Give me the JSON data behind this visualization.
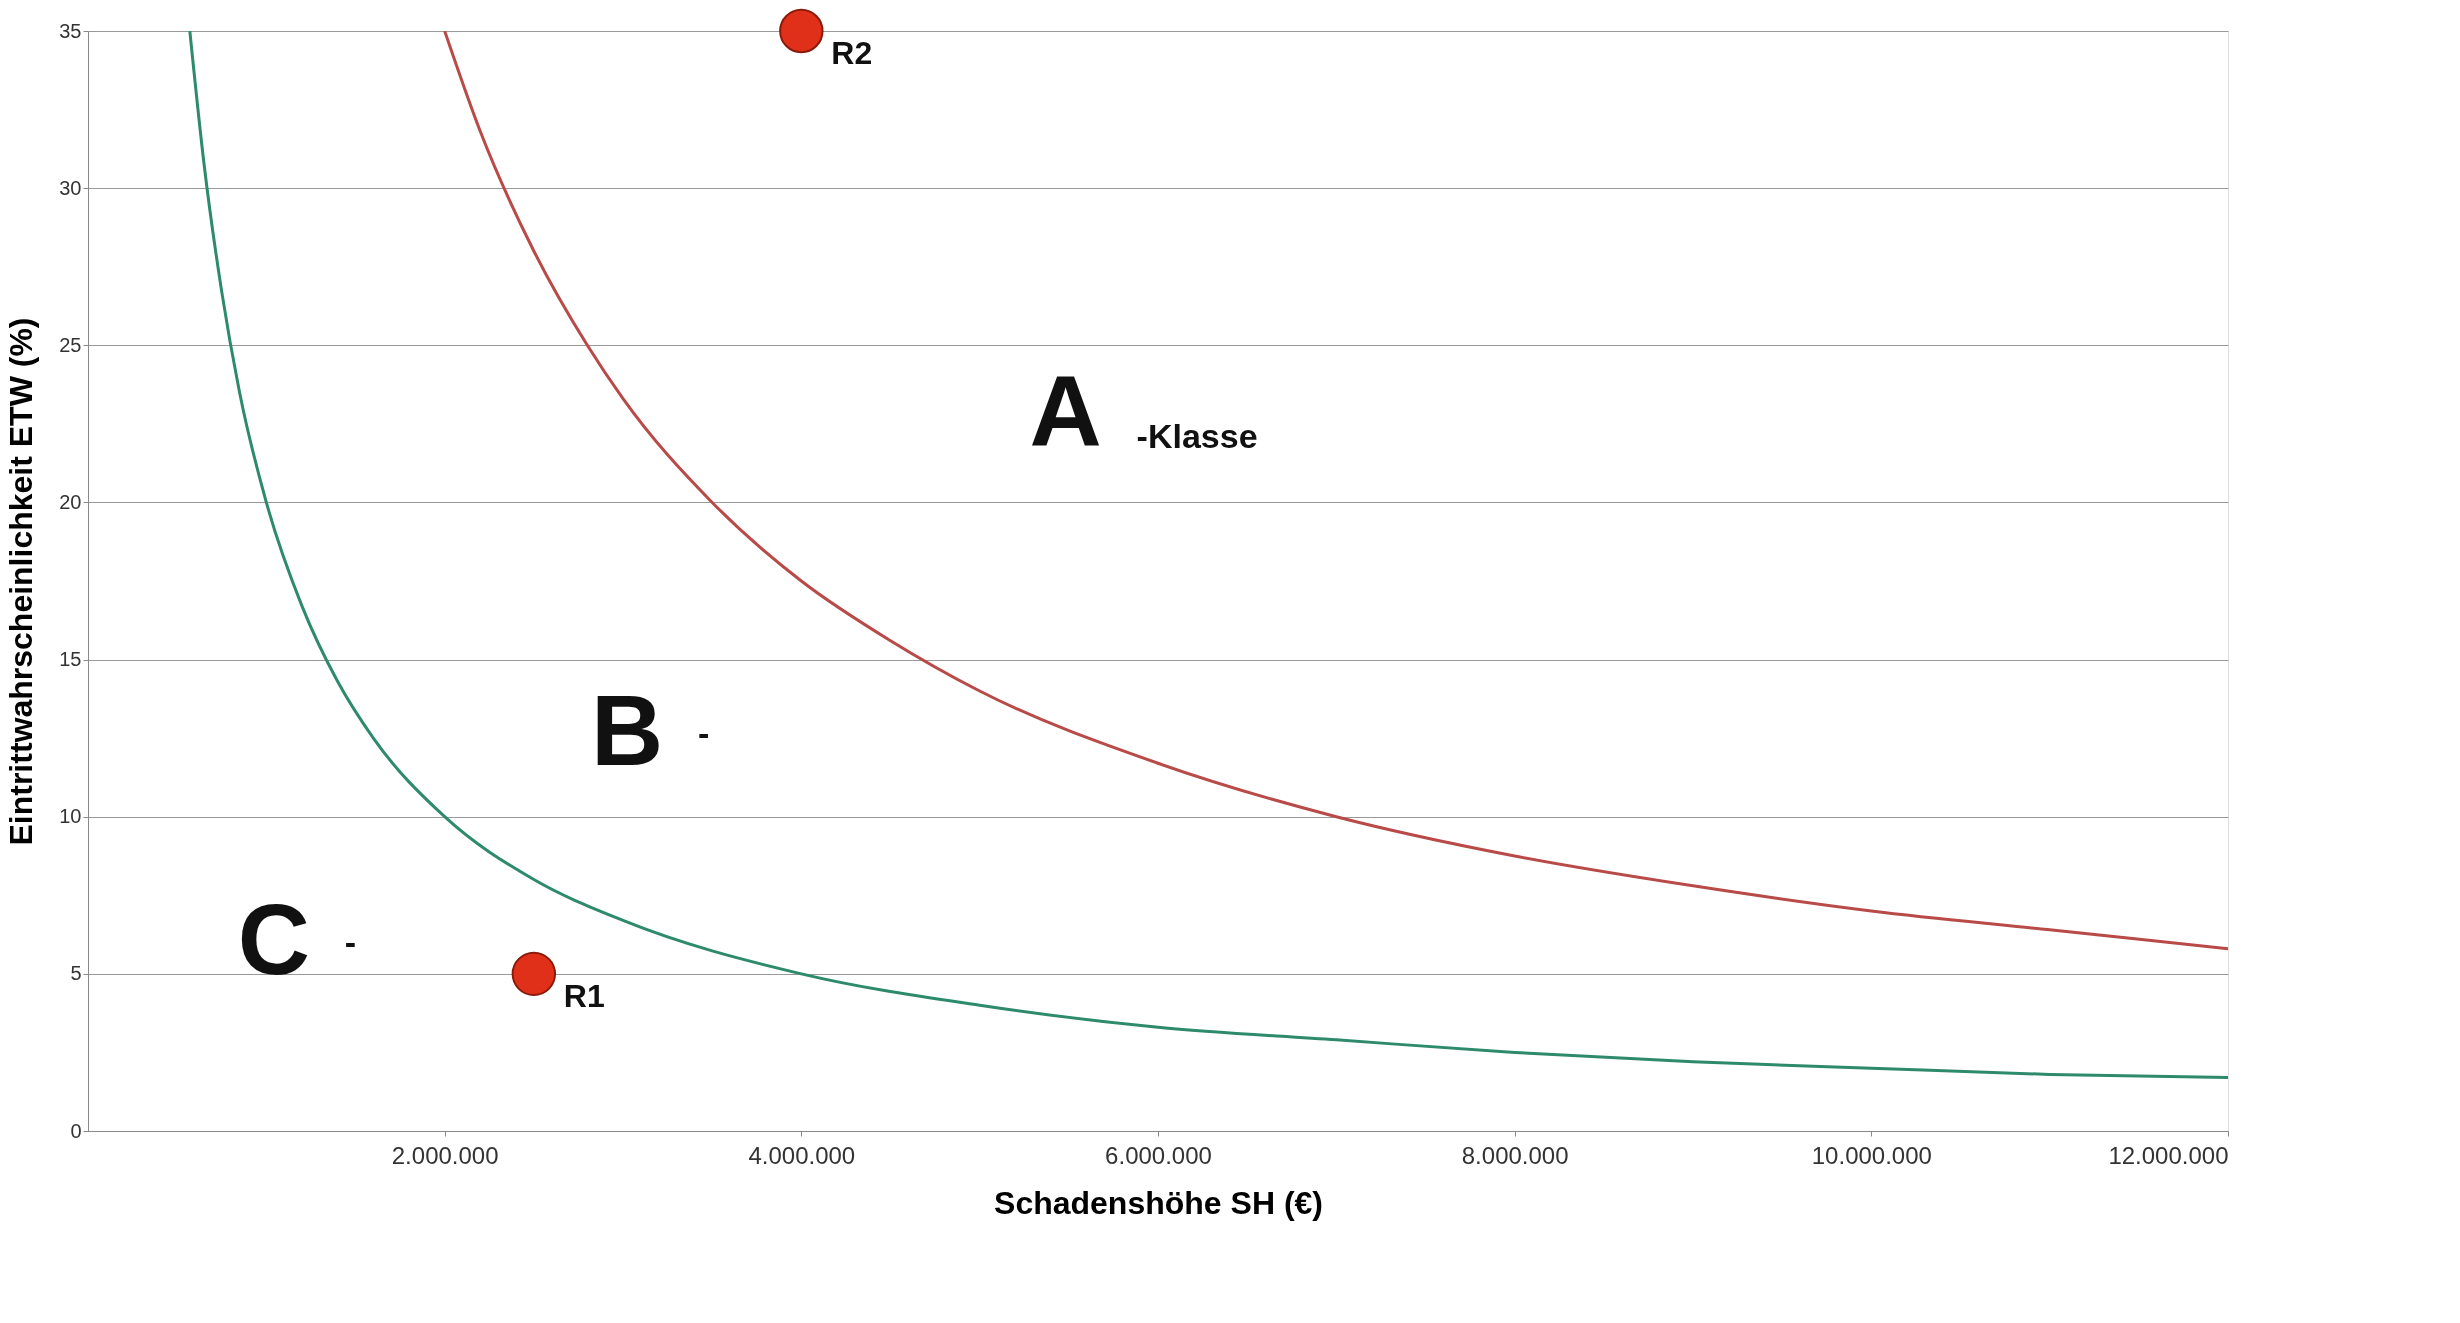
{
  "chart_data": {
    "type": "line",
    "xlabel": "Schadenshöhe SH (€)",
    "ylabel": "Eintrittwahrscheinlichkeit ETW (%)",
    "xlim": [
      0,
      12000000
    ],
    "ylim": [
      0,
      35
    ],
    "xticks": [
      {
        "value": 2000000,
        "label": "2.000.000"
      },
      {
        "value": 4000000,
        "label": "4.000.000"
      },
      {
        "value": 6000000,
        "label": "6.000.000"
      },
      {
        "value": 8000000,
        "label": "8.000.000"
      },
      {
        "value": 10000000,
        "label": "10.000.000"
      },
      {
        "value": 12000000,
        "label": "12.000.000"
      }
    ],
    "yticks": [
      0,
      5,
      10,
      15,
      20,
      25,
      30,
      35
    ],
    "grid": "y",
    "series": [
      {
        "color": "#b84a48",
        "x": [
          2000000,
          2200000,
          2500000,
          2800000,
          3000000,
          3500000,
          4000000,
          4500000,
          5000000,
          6000000,
          7000000,
          8000000,
          9000000,
          10000000,
          11000000,
          12000000
        ],
        "values": [
          35,
          31.8,
          28,
          25,
          23.3,
          20,
          17.5,
          15.6,
          14,
          11.7,
          10,
          8.75,
          7.8,
          7,
          6.4,
          5.8
        ]
      },
      {
        "color": "#2e8a6c",
        "x": [
          571000,
          650000,
          750000,
          850000,
          1000000,
          1200000,
          1400000,
          1600000,
          2000000,
          2500000,
          3000000,
          4000000,
          5000000,
          6000000,
          7000000,
          8000000,
          9000000,
          10000000,
          11000000,
          12000000
        ],
        "values": [
          35,
          30.8,
          26.7,
          23.5,
          20,
          16.7,
          14.3,
          12.5,
          10,
          8,
          6.7,
          5,
          4,
          3.3,
          2.9,
          2.5,
          2.2,
          2,
          1.8,
          1.7
        ]
      },
      {
        "type": "scatter",
        "name": "R1",
        "color": "#e0301a",
        "x": [
          2500000
        ],
        "values": [
          5
        ]
      },
      {
        "type": "scatter",
        "name": "R2",
        "color": "#e0301a",
        "x": [
          4000000
        ],
        "values": [
          35
        ]
      }
    ],
    "annotations": [
      "A",
      "-Klasse",
      "B",
      "-",
      "C",
      "-"
    ]
  }
}
